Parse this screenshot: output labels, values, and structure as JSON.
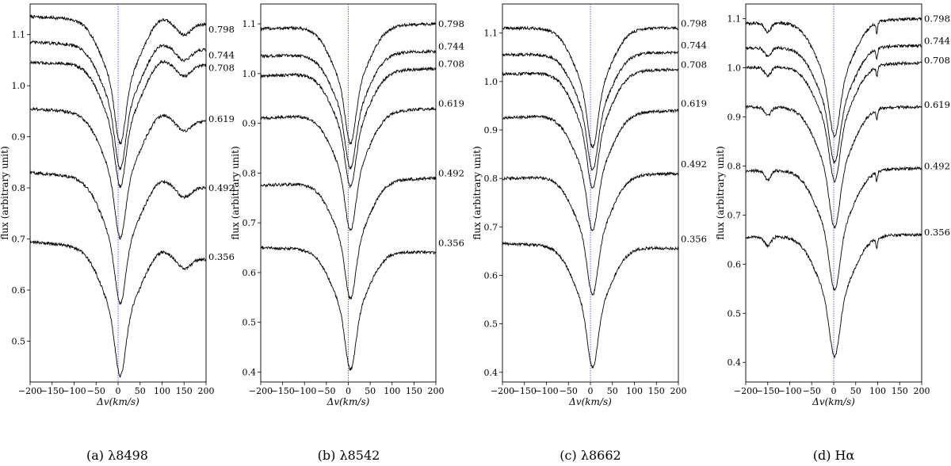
{
  "chart_data": [
    {
      "type": "line",
      "caption": "(a) λ8498",
      "xlabel": "Δv(km/s)",
      "ylabel": "flux (arbitrary unit)",
      "xlim": [
        -200,
        200
      ],
      "ylim": [
        0.42,
        1.16
      ],
      "xticks": [
        -200,
        -150,
        -100,
        -50,
        0,
        50,
        100,
        150,
        200
      ],
      "yticks": [
        0.5,
        0.6,
        0.7,
        0.8,
        0.9,
        1.0,
        1.1
      ],
      "reference_line_x": 0,
      "absorption_center": 5,
      "series": [
        {
          "name": "0.798",
          "continuum": 1.135,
          "depth": 0.24,
          "end": 1.12,
          "label_y": 1.11
        },
        {
          "name": "0.744",
          "continuum": 1.085,
          "depth": 0.24,
          "end": 1.07,
          "label_y": 1.06
        },
        {
          "name": "0.708",
          "continuum": 1.045,
          "depth": 0.24,
          "end": 1.04,
          "label_y": 1.035
        },
        {
          "name": "0.619",
          "continuum": 0.955,
          "depth": 0.24,
          "end": 0.93,
          "label_y": 0.935
        },
        {
          "name": "0.492",
          "continuum": 0.83,
          "depth": 0.24,
          "end": 0.8,
          "label_y": 0.8
        },
        {
          "name": "0.356",
          "continuum": 0.695,
          "depth": 0.245,
          "end": 0.66,
          "label_y": 0.665
        }
      ]
    },
    {
      "type": "line",
      "caption": "(b) λ8542",
      "xlabel": "Δv(km/s)",
      "ylabel": "flux (arbitrary unit)",
      "xlim": [
        -200,
        200
      ],
      "ylim": [
        0.38,
        1.14
      ],
      "xticks": [
        -200,
        -150,
        -100,
        -50,
        0,
        50,
        100,
        150,
        200
      ],
      "yticks": [
        0.4,
        0.5,
        0.6,
        0.7,
        0.8,
        0.9,
        1.0,
        1.1
      ],
      "reference_line_x": 0,
      "absorption_center": 5,
      "series": [
        {
          "name": "0.798",
          "continuum": 1.09,
          "depth": 0.235,
          "end": 1.1,
          "label_y": 1.1
        },
        {
          "name": "0.744",
          "continuum": 1.035,
          "depth": 0.23,
          "end": 1.045,
          "label_y": 1.055
        },
        {
          "name": "0.708",
          "continuum": 0.995,
          "depth": 0.23,
          "end": 1.01,
          "label_y": 1.02
        },
        {
          "name": "0.619",
          "continuum": 0.91,
          "depth": 0.235,
          "end": 0.93,
          "label_y": 0.94
        },
        {
          "name": "0.492",
          "continuum": 0.775,
          "depth": 0.235,
          "end": 0.79,
          "label_y": 0.8
        },
        {
          "name": "0.356",
          "continuum": 0.65,
          "depth": 0.24,
          "end": 0.64,
          "label_y": 0.66
        }
      ]
    },
    {
      "type": "line",
      "caption": "(c) λ8662",
      "xlabel": "Δv(km/s)",
      "ylabel": "flux (arbitrary unit)",
      "xlim": [
        -200,
        200
      ],
      "ylim": [
        0.38,
        1.16
      ],
      "xticks": [
        -200,
        -150,
        -100,
        -50,
        0,
        50,
        100,
        150,
        200
      ],
      "yticks": [
        0.4,
        0.5,
        0.6,
        0.7,
        0.8,
        0.9,
        1.0,
        1.1
      ],
      "reference_line_x": 0,
      "absorption_center": 5,
      "series": [
        {
          "name": "0.798",
          "continuum": 1.11,
          "depth": 0.245,
          "end": 1.11,
          "label_y": 1.12
        },
        {
          "name": "0.744",
          "continuum": 1.055,
          "depth": 0.24,
          "end": 1.06,
          "label_y": 1.075
        },
        {
          "name": "0.708",
          "continuum": 1.015,
          "depth": 0.24,
          "end": 1.025,
          "label_y": 1.035
        },
        {
          "name": "0.619",
          "continuum": 0.925,
          "depth": 0.24,
          "end": 0.94,
          "label_y": 0.955
        },
        {
          "name": "0.492",
          "continuum": 0.8,
          "depth": 0.245,
          "end": 0.81,
          "label_y": 0.83
        },
        {
          "name": "0.356",
          "continuum": 0.665,
          "depth": 0.25,
          "end": 0.655,
          "label_y": 0.675
        }
      ]
    },
    {
      "type": "line",
      "caption": "(d) Hα",
      "xlabel": "Δv(km/s)",
      "ylabel": "flux (arbitrary unit)",
      "xlim": [
        -200,
        200
      ],
      "ylim": [
        0.36,
        1.13
      ],
      "xticks": [
        -200,
        -150,
        -100,
        -50,
        0,
        50,
        100,
        150,
        200
      ],
      "yticks": [
        0.4,
        0.5,
        0.6,
        0.7,
        0.8,
        0.9,
        1.0,
        1.1
      ],
      "reference_line_x": 0,
      "absorption_center": 2,
      "series": [
        {
          "name": "0.798",
          "continuum": 1.09,
          "depth": 0.235,
          "end": 1.1,
          "label_y": 1.1
        },
        {
          "name": "0.744",
          "continuum": 1.04,
          "depth": 0.235,
          "end": 1.045,
          "label_y": 1.055
        },
        {
          "name": "0.708",
          "continuum": 1.0,
          "depth": 0.235,
          "end": 1.01,
          "label_y": 1.015
        },
        {
          "name": "0.619",
          "continuum": 0.92,
          "depth": 0.245,
          "end": 0.92,
          "label_y": 0.925
        },
        {
          "name": "0.492",
          "continuum": 0.79,
          "depth": 0.245,
          "end": 0.795,
          "label_y": 0.8
        },
        {
          "name": "0.356",
          "continuum": 0.655,
          "depth": 0.245,
          "end": 0.66,
          "label_y": 0.665
        }
      ]
    }
  ]
}
